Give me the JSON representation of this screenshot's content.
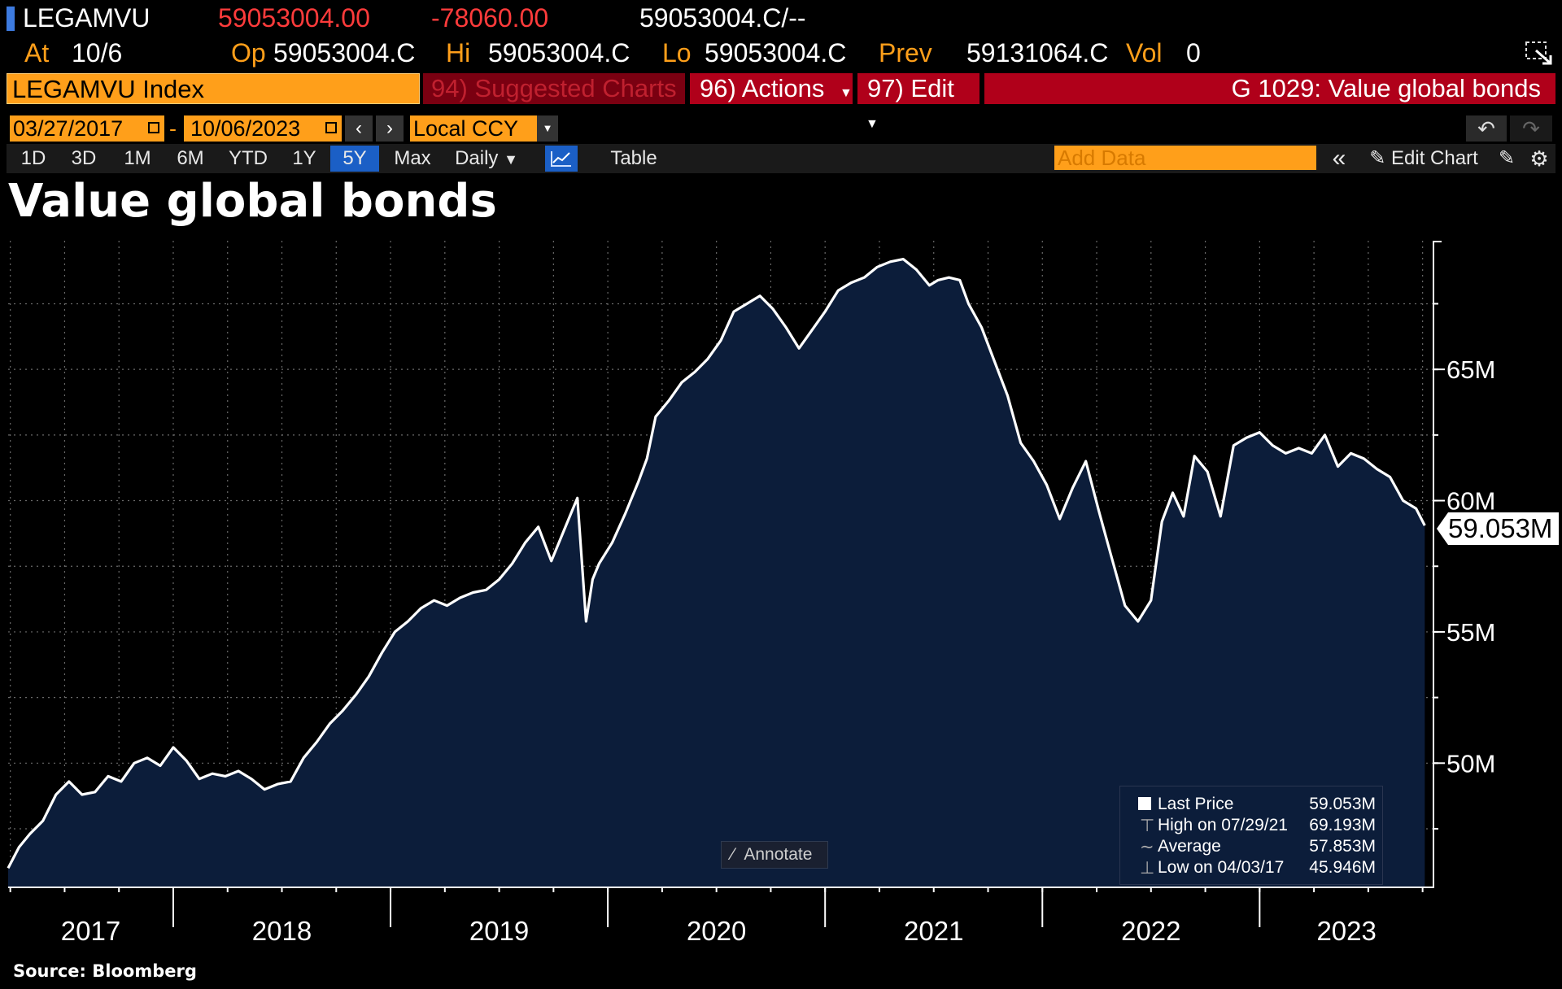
{
  "header": {
    "ticker": "LEGAMVU",
    "last": "59053004.00",
    "change": "-78060.00",
    "bidask": "59053004.C/--",
    "at_label": "At",
    "at_date": "10/6",
    "op_label": "Op",
    "op_value": "59053004.C",
    "hi_label": "Hi",
    "hi_value": "59053004.C",
    "lo_label": "Lo",
    "lo_value": "59053004.C",
    "prev_label": "Prev",
    "prev_value": "59131064.C",
    "vol_label": "Vol",
    "vol_value": "0"
  },
  "menubar": {
    "security": "LEGAMVU Index",
    "suggested": "94) Suggested Charts",
    "actions": "96) Actions",
    "edit": "97) Edit",
    "page": "G 1029: Value global bonds"
  },
  "toolbar": {
    "start_date": "03/27/2017",
    "end_date": "10/06/2023",
    "date_sep": "-",
    "currency": "Local CCY",
    "ranges": [
      "1D",
      "3D",
      "1M",
      "6M",
      "YTD",
      "1Y",
      "5Y",
      "Max"
    ],
    "active_range": "5Y",
    "frequency": "Daily",
    "table": "Table",
    "add_data_placeholder": "Add Data",
    "edit_chart": "Edit Chart"
  },
  "colors": {
    "accent_orange": "#ff9f1a",
    "menu_red": "#b0001a",
    "area_fill": "#0c1d3a",
    "line": "#ffffff",
    "active_tab": "#1b5fc6"
  },
  "icons": [
    "calendar-icon",
    "chevron-left-icon",
    "chevron-right-icon",
    "dropdown-icon",
    "undo-icon",
    "redo-icon",
    "line-chart-icon",
    "collapse-icon",
    "pencil-icon",
    "gear-icon",
    "expand-icon",
    "annotate-icon"
  ],
  "annotate_label": "Annotate",
  "legend": {
    "rows": [
      {
        "label": "Last Price",
        "value": "59.053M"
      },
      {
        "label": "High on 07/29/21",
        "value": "69.193M"
      },
      {
        "label": "Average",
        "value": "57.853M"
      },
      {
        "label": "Low on 04/03/17",
        "value": "45.946M"
      }
    ]
  },
  "source": "Source: Bloomberg",
  "chart_data": {
    "type": "area",
    "title": "Value global bonds",
    "xlabel": "",
    "ylabel": "",
    "x_tick_labels": [
      "2017",
      "2018",
      "2019",
      "2020",
      "2021",
      "2022",
      "2023"
    ],
    "y_tick_labels": [
      "50M",
      "55M",
      "60M",
      "65M"
    ],
    "y_ticks": [
      50,
      55,
      60,
      65
    ],
    "ylim": [
      45.3,
      69.9
    ],
    "xlim": [
      2017.24,
      2023.8
    ],
    "last_price_label": "59.053M",
    "grid": true,
    "series": [
      {
        "unit": "M",
        "x": [
          2017.24,
          2017.29,
          2017.34,
          2017.4,
          2017.46,
          2017.52,
          2017.58,
          2017.64,
          2017.7,
          2017.76,
          2017.82,
          2017.88,
          2017.94,
          2018.0,
          2018.06,
          2018.12,
          2018.18,
          2018.24,
          2018.3,
          2018.36,
          2018.42,
          2018.48,
          2018.54,
          2018.6,
          2018.66,
          2018.72,
          2018.78,
          2018.84,
          2018.9,
          2018.96,
          2019.02,
          2019.08,
          2019.14,
          2019.2,
          2019.26,
          2019.32,
          2019.38,
          2019.44,
          2019.5,
          2019.56,
          2019.62,
          2019.68,
          2019.74,
          2019.8,
          2019.86,
          2019.9,
          2019.93,
          2019.96,
          2020.02,
          2020.08,
          2020.14,
          2020.18,
          2020.22,
          2020.28,
          2020.34,
          2020.4,
          2020.46,
          2020.52,
          2020.58,
          2020.64,
          2020.7,
          2020.76,
          2020.82,
          2020.88,
          2020.94,
          2021.0,
          2021.06,
          2021.12,
          2021.18,
          2021.24,
          2021.3,
          2021.36,
          2021.42,
          2021.48,
          2021.52,
          2021.57,
          2021.62,
          2021.66,
          2021.72,
          2021.78,
          2021.84,
          2021.9,
          2021.96,
          2022.02,
          2022.08,
          2022.14,
          2022.2,
          2022.26,
          2022.32,
          2022.38,
          2022.44,
          2022.5,
          2022.55,
          2022.6,
          2022.65,
          2022.7,
          2022.76,
          2022.82,
          2022.88,
          2022.94,
          2023.0,
          2023.06,
          2023.12,
          2023.18,
          2023.24,
          2023.3,
          2023.36,
          2023.42,
          2023.48,
          2023.54,
          2023.6,
          2023.66,
          2023.72,
          2023.76
        ],
        "values": [
          46.0,
          46.8,
          47.3,
          47.8,
          48.8,
          49.3,
          48.8,
          48.9,
          49.5,
          49.3,
          50.0,
          50.2,
          49.9,
          50.6,
          50.1,
          49.4,
          49.6,
          49.5,
          49.7,
          49.4,
          49.0,
          49.2,
          49.3,
          50.2,
          50.8,
          51.5,
          52.0,
          52.6,
          53.3,
          54.2,
          55.0,
          55.4,
          55.9,
          56.2,
          56.0,
          56.3,
          56.5,
          56.6,
          57.0,
          57.6,
          58.4,
          59.0,
          57.7,
          58.9,
          60.1,
          55.4,
          57.0,
          57.6,
          58.4,
          59.5,
          60.7,
          61.6,
          63.2,
          63.8,
          64.5,
          64.9,
          65.4,
          66.1,
          67.2,
          67.5,
          67.8,
          67.3,
          66.6,
          65.8,
          66.5,
          67.2,
          68.0,
          68.3,
          68.5,
          68.9,
          69.1,
          69.2,
          68.8,
          68.2,
          68.4,
          68.5,
          68.4,
          67.5,
          66.6,
          65.3,
          64.0,
          62.2,
          61.5,
          60.6,
          59.3,
          60.5,
          61.5,
          59.6,
          57.8,
          56.0,
          55.4,
          56.2,
          59.2,
          60.3,
          59.4,
          61.7,
          61.1,
          59.4,
          62.1,
          62.4,
          62.6,
          62.1,
          61.8,
          62.0,
          61.8,
          62.5,
          61.3,
          61.8,
          61.6,
          61.2,
          60.9,
          60.0,
          59.7,
          59.053
        ]
      }
    ],
    "legend_position": "bottom-right"
  }
}
